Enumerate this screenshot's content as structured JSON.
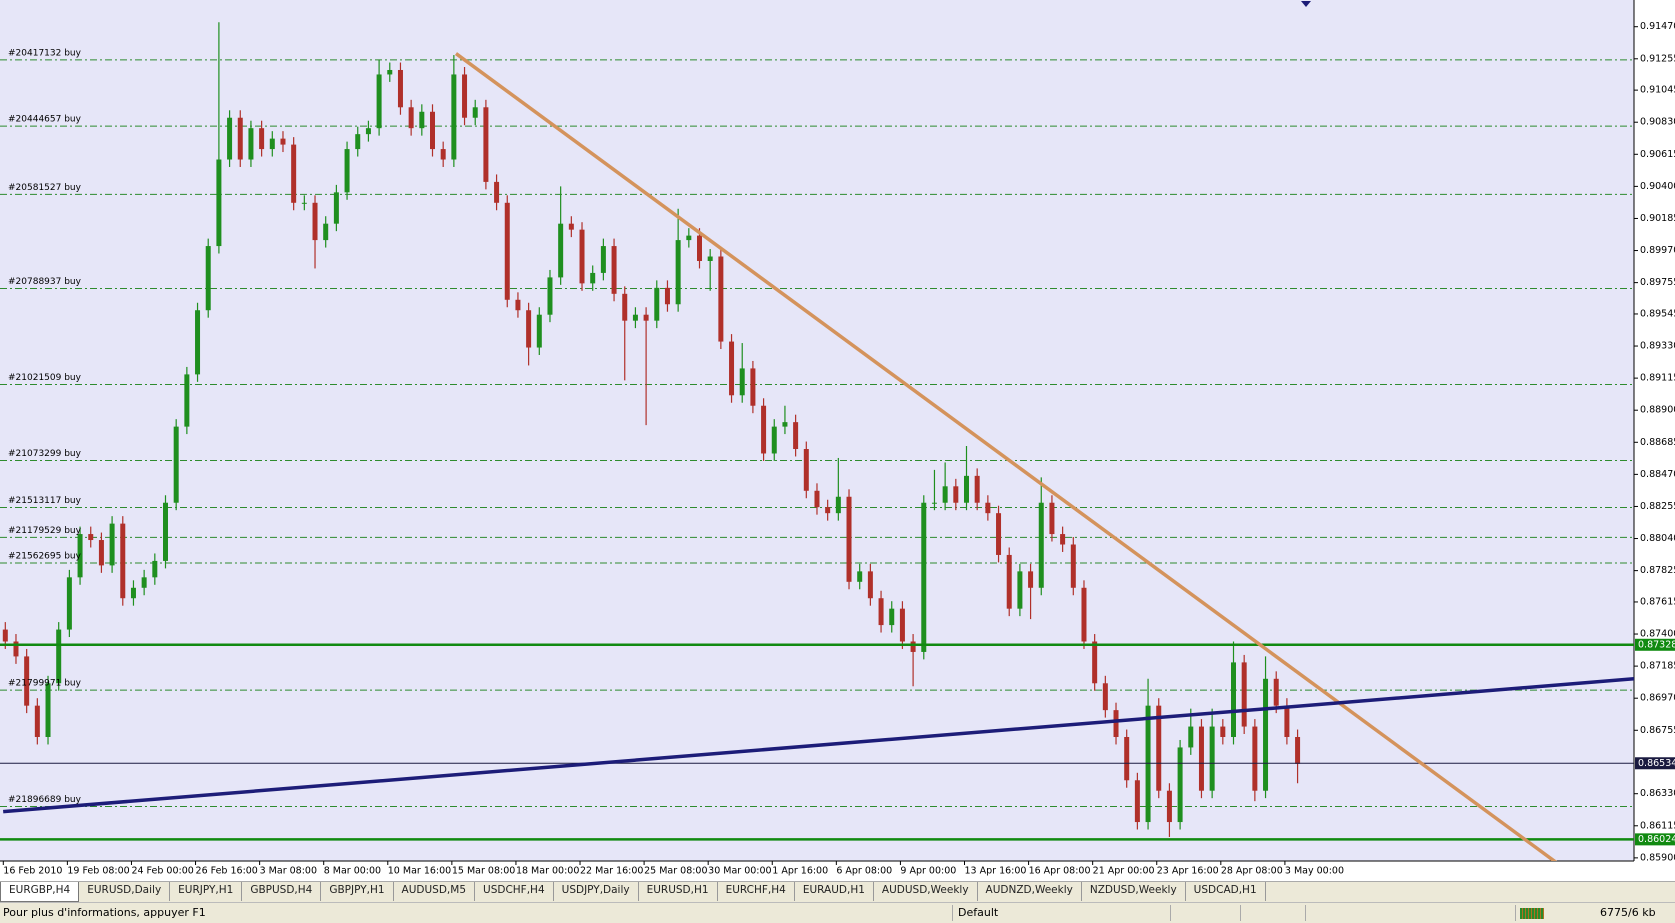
{
  "chart_data": {
    "type": "candlestick",
    "categories": [
      "16 Feb 2010",
      null,
      null,
      null,
      null,
      null,
      "19 Feb 08:00",
      null,
      null,
      null,
      null,
      null,
      "24 Feb 00:00",
      null,
      null,
      null,
      null,
      null,
      "26 Feb 16:00",
      null,
      null,
      null,
      null,
      null,
      "3 Mar 08:00",
      null,
      null,
      null,
      null,
      null,
      "8 Mar 00:00",
      null,
      null,
      null,
      null,
      null,
      "10 Mar 16:00",
      null,
      null,
      null,
      null,
      null,
      "15 Mar 08:00",
      null,
      null,
      null,
      null,
      null,
      "18 Mar 00:00",
      null,
      null,
      null,
      null,
      null,
      "22 Mar 16:00",
      null,
      null,
      null,
      null,
      null,
      "25 Mar 08:00",
      null,
      null,
      null,
      null,
      null,
      "30 Mar 00:00",
      null,
      null,
      null,
      null,
      null,
      "1 Apr 16:00",
      null,
      null,
      null,
      null,
      null,
      "6 Apr 08:00",
      null,
      null,
      null,
      null,
      null,
      "9 Apr 00:00",
      null,
      null,
      null,
      null,
      null,
      "13 Apr 16:00",
      null,
      null,
      null,
      null,
      null,
      "16 Apr 08:00",
      null,
      null,
      null,
      null,
      null,
      "21 Apr 00:00",
      null,
      null,
      null,
      null,
      null,
      "23 Apr 16:00",
      null,
      null,
      null,
      null,
      null,
      "28 Apr 08:00",
      null,
      null,
      null,
      null,
      null,
      "3 May 00:00",
      null
    ],
    "open": [
      0.8743,
      0.8735,
      0.8725,
      0.8692,
      0.8671,
      0.8707,
      0.8743,
      0.8778,
      0.8807,
      0.8803,
      0.8786,
      0.8814,
      0.8764,
      0.8771,
      0.8778,
      0.8789,
      0.8828,
      0.8879,
      0.8914,
      0.8957,
      0.9,
      0.9058,
      0.9086,
      0.9058,
      0.9079,
      0.9065,
      0.9072,
      0.9068,
      0.9029,
      0.9029,
      0.9004,
      0.9015,
      0.9036,
      0.9065,
      0.9075,
      0.9079,
      0.9115,
      0.9118,
      0.9093,
      0.9079,
      0.909,
      0.9065,
      0.9058,
      0.9115,
      0.9086,
      0.9093,
      0.9043,
      0.9029,
      0.8964,
      0.8957,
      0.8932,
      0.8954,
      0.8979,
      0.9015,
      0.9011,
      0.8975,
      0.8982,
      0.9,
      0.8968,
      0.895,
      0.8954,
      0.895,
      0.8972,
      0.8961,
      0.9004,
      0.9007,
      0.899,
      0.8993,
      0.8936,
      0.89,
      0.8918,
      0.8893,
      0.8861,
      0.8879,
      0.8882,
      0.8864,
      0.8836,
      0.8825,
      0.8821,
      0.8832,
      0.8775,
      0.8782,
      0.8764,
      0.8746,
      0.8757,
      0.8735,
      0.8728,
      0.8828,
      0.8828,
      0.8839,
      0.8828,
      0.8846,
      0.8828,
      0.8821,
      0.8793,
      0.8757,
      0.8782,
      0.8771,
      0.8828,
      0.8807,
      0.88,
      0.8771,
      0.8735,
      0.8707,
      0.8689,
      0.8671,
      0.8642,
      0.8614,
      0.8692,
      0.8635,
      0.8614,
      0.8664,
      0.8678,
      0.8635,
      0.8678,
      0.8671,
      0.8721,
      0.8678,
      0.8635,
      0.871,
      0.8692,
      0.8671
    ],
    "high": [
      0.8748,
      0.874,
      0.873,
      0.8697,
      0.8712,
      0.8748,
      0.8783,
      0.8812,
      0.8812,
      0.8808,
      0.8819,
      0.8819,
      0.8776,
      0.8783,
      0.8794,
      0.8833,
      0.8884,
      0.8919,
      0.8962,
      0.9005,
      0.915,
      0.9091,
      0.9091,
      0.9084,
      0.9084,
      0.9077,
      0.9077,
      0.9073,
      0.9034,
      0.9034,
      0.902,
      0.9041,
      0.907,
      0.908,
      0.9084,
      0.9125,
      0.9123,
      0.9123,
      0.9098,
      0.9095,
      0.9095,
      0.907,
      0.9128,
      0.912,
      0.9098,
      0.9098,
      0.9048,
      0.9034,
      0.8969,
      0.8962,
      0.8959,
      0.8984,
      0.904,
      0.902,
      0.9016,
      0.8987,
      0.9005,
      0.9005,
      0.8973,
      0.8959,
      0.8959,
      0.8977,
      0.8977,
      0.9025,
      0.9012,
      0.9012,
      0.8998,
      0.8998,
      0.8941,
      0.8935,
      0.8923,
      0.8898,
      0.8884,
      0.8893,
      0.8887,
      0.8869,
      0.8841,
      0.883,
      0.8858,
      0.8837,
      0.8787,
      0.8787,
      0.8769,
      0.8762,
      0.8762,
      0.874,
      0.8833,
      0.885,
      0.8855,
      0.8844,
      0.8866,
      0.8851,
      0.8833,
      0.8826,
      0.8798,
      0.8787,
      0.8787,
      0.8845,
      0.8833,
      0.8812,
      0.8805,
      0.8776,
      0.874,
      0.8712,
      0.8694,
      0.8676,
      0.8647,
      0.871,
      0.8697,
      0.864,
      0.8669,
      0.869,
      0.8683,
      0.869,
      0.8683,
      0.8735,
      0.8726,
      0.8683,
      0.8725,
      0.8715,
      0.8697,
      0.8676
    ],
    "low": [
      0.873,
      0.872,
      0.8687,
      0.8666,
      0.8666,
      0.8702,
      0.8738,
      0.8773,
      0.8798,
      0.8781,
      0.8781,
      0.8759,
      0.8759,
      0.8766,
      0.8773,
      0.8784,
      0.8823,
      0.8874,
      0.8909,
      0.8952,
      0.8995,
      0.9053,
      0.9053,
      0.9053,
      0.906,
      0.906,
      0.9063,
      0.9024,
      0.9024,
      0.8985,
      0.8999,
      0.901,
      0.9031,
      0.906,
      0.907,
      0.9074,
      0.911,
      0.9088,
      0.9074,
      0.9074,
      0.906,
      0.9053,
      0.9053,
      0.9081,
      0.9081,
      0.9038,
      0.9024,
      0.8959,
      0.8952,
      0.892,
      0.8927,
      0.8949,
      0.8974,
      0.9006,
      0.897,
      0.897,
      0.8977,
      0.8963,
      0.891,
      0.8945,
      0.888,
      0.8945,
      0.8956,
      0.8956,
      0.8999,
      0.8985,
      0.897,
      0.8931,
      0.8895,
      0.8895,
      0.8888,
      0.8856,
      0.8856,
      0.8874,
      0.8859,
      0.8831,
      0.882,
      0.8816,
      0.8816,
      0.877,
      0.877,
      0.8759,
      0.8741,
      0.8741,
      0.873,
      0.8705,
      0.8723,
      0.8823,
      0.8823,
      0.8823,
      0.8823,
      0.8823,
      0.8816,
      0.8788,
      0.8752,
      0.8752,
      0.875,
      0.8766,
      0.8802,
      0.8795,
      0.8766,
      0.873,
      0.8702,
      0.8684,
      0.8666,
      0.8637,
      0.8609,
      0.8609,
      0.863,
      0.8604,
      0.8609,
      0.8659,
      0.863,
      0.863,
      0.8666,
      0.8666,
      0.8673,
      0.8628,
      0.863,
      0.8687,
      0.8666,
      0.864
    ],
    "close": [
      0.8735,
      0.8725,
      0.8692,
      0.8671,
      0.8707,
      0.8743,
      0.8778,
      0.8807,
      0.8803,
      0.8786,
      0.8814,
      0.8764,
      0.8771,
      0.8778,
      0.8789,
      0.8828,
      0.8879,
      0.8914,
      0.8957,
      0.9,
      0.9058,
      0.9086,
      0.9058,
      0.9079,
      0.9065,
      0.9072,
      0.9068,
      0.9029,
      0.9029,
      0.9004,
      0.9015,
      0.9036,
      0.9065,
      0.9075,
      0.9079,
      0.9115,
      0.9118,
      0.9093,
      0.9079,
      0.909,
      0.9065,
      0.9058,
      0.9115,
      0.9086,
      0.9093,
      0.9043,
      0.9029,
      0.8964,
      0.8957,
      0.8932,
      0.8954,
      0.8979,
      0.9015,
      0.9011,
      0.8975,
      0.8982,
      0.9,
      0.8968,
      0.895,
      0.8954,
      0.895,
      0.8972,
      0.8961,
      0.9004,
      0.9007,
      0.899,
      0.8993,
      0.8936,
      0.89,
      0.8918,
      0.8893,
      0.8861,
      0.8879,
      0.8882,
      0.8864,
      0.8836,
      0.8825,
      0.8821,
      0.8832,
      0.8775,
      0.8782,
      0.8764,
      0.8746,
      0.8757,
      0.8735,
      0.8728,
      0.8828,
      0.8828,
      0.8839,
      0.8828,
      0.8846,
      0.8828,
      0.8821,
      0.8793,
      0.8757,
      0.8782,
      0.8771,
      0.8828,
      0.8807,
      0.88,
      0.8771,
      0.8735,
      0.8707,
      0.8689,
      0.8671,
      0.8642,
      0.8614,
      0.8692,
      0.8635,
      0.8614,
      0.8664,
      0.8678,
      0.8635,
      0.8678,
      0.8671,
      0.8721,
      0.8678,
      0.8635,
      0.871,
      0.8692,
      0.8671,
      0.8653
    ],
    "up_color": "#1f8f1f",
    "down_color": "#b0302a",
    "ylim": [
      0.85879,
      0.91649
    ],
    "yticks": [
      {
        "value": 0.9147,
        "label": "0.91470"
      },
      0.91255,
      0.91045,
      {
        "value": 0.9083,
        "label": "0.90830"
      },
      0.90615,
      {
        "value": 0.904,
        "label": "0.90400"
      },
      0.90185,
      {
        "value": 0.8997,
        "label": "0.89970"
      },
      0.89755,
      0.89545,
      {
        "value": 0.8933,
        "label": "0.89330"
      },
      0.89115,
      {
        "value": 0.889,
        "label": "0.88900"
      },
      0.88685,
      {
        "value": 0.8847,
        "label": "0.88470"
      },
      0.88255,
      {
        "value": 0.8804,
        "label": "0.88040"
      },
      0.87825,
      0.87615,
      {
        "value": 0.874,
        "label": "0.87400"
      },
      0.87185,
      {
        "value": 0.8697,
        "label": "0.86970"
      },
      0.86755,
      {
        "value": 0.8633,
        "label": "0.86330"
      },
      0.86115,
      {
        "value": 0.859,
        "label": "0.85900"
      }
    ],
    "orders": [
      {
        "label": "#20417132 buy",
        "value": 0.91248
      },
      {
        "label": "#20444657 buy",
        "value": 0.90804
      },
      {
        "label": "#20581527 buy",
        "value": 0.90346
      },
      {
        "label": "#20788937 buy",
        "value": 0.89716
      },
      {
        "label": "#21021509 buy",
        "value": 0.89072
      },
      {
        "label": "#21073299 buy",
        "value": 0.88563
      },
      {
        "label": "#21513117 buy",
        "value": 0.88248
      },
      {
        "label": "#21179529 buy",
        "value": 0.88048
      },
      {
        "label": "#21562695 buy",
        "value": 0.87876
      },
      {
        "label": "#21799971 buy",
        "value": 0.87024
      },
      {
        "label": "#21896689 buy",
        "value": 0.86244
      }
    ],
    "order_color": "#2e8b2e",
    "hlines": [
      {
        "value": 0.87328,
        "color": "#118a11"
      },
      {
        "value": 0.86534,
        "color": "#1a1a40"
      },
      {
        "value": 0.86024,
        "color": "#118a11"
      }
    ],
    "trendlines": [
      {
        "color": "#d4935c",
        "x": [
          42.2,
          148.7
        ],
        "values": [
          0.9129,
          0.85686
        ]
      },
      {
        "color": "#1c1c78",
        "x": [
          -0.2,
          152.5
        ],
        "values": [
          0.8621,
          0.871
        ]
      }
    ]
  },
  "tabs": [
    "EURGBP,H4",
    "EURUSD,Daily",
    "EURJPY,H1",
    "GBPUSD,H4",
    "GBPJPY,H1",
    "AUDUSD,M5",
    "USDCHF,H4",
    "USDJPY,Daily",
    "EURUSD,H1",
    "EURCHF,H4",
    "EURAUD,H1",
    "AUDUSD,Weekly",
    "AUDNZD,Weekly",
    "NZDUSD,Weekly",
    "USDCAD,H1"
  ],
  "status": {
    "help": "Pour plus d'informations, appuyer F1",
    "profile": "Default",
    "traffic": "6775/6 kb"
  }
}
